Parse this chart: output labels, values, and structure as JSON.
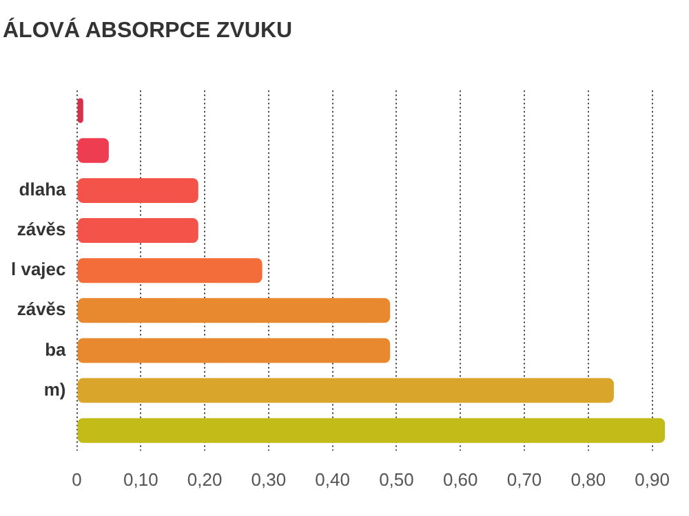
{
  "chart_data": {
    "type": "bar",
    "orientation": "horizontal",
    "title": "ÁLOVÁ ABSORPCE ZVUKU",
    "categories": [
      null,
      null,
      "dlaha",
      "závěs",
      "l vajec",
      "závěs",
      "ba",
      "m)",
      null
    ],
    "values": [
      0.01,
      0.05,
      0.19,
      0.19,
      0.29,
      0.49,
      0.49,
      0.84,
      0.92
    ],
    "colors": [
      "#d9304e",
      "#ee3d50",
      "#f4534a",
      "#f4534a",
      "#f26d3a",
      "#e8892f",
      "#e8892f",
      "#d9a52a",
      "#c2bb18"
    ],
    "xlim": [
      0,
      0.92
    ],
    "xticks": [
      0,
      {
        "value": 0.1,
        "label": "0,10"
      },
      {
        "value": 0.2,
        "label": "0,20"
      },
      {
        "value": 0.3,
        "label": "0,30"
      },
      {
        "value": 0.4,
        "label": "0,40"
      },
      {
        "value": 0.5,
        "label": "0,50"
      },
      {
        "value": 0.6,
        "label": "0,60"
      },
      {
        "value": 0.7,
        "label": "0,70"
      },
      {
        "value": 0.8,
        "label": "0,80"
      },
      {
        "value": 0.9,
        "label": "0,90"
      }
    ],
    "grid": "x",
    "legend": false
  }
}
